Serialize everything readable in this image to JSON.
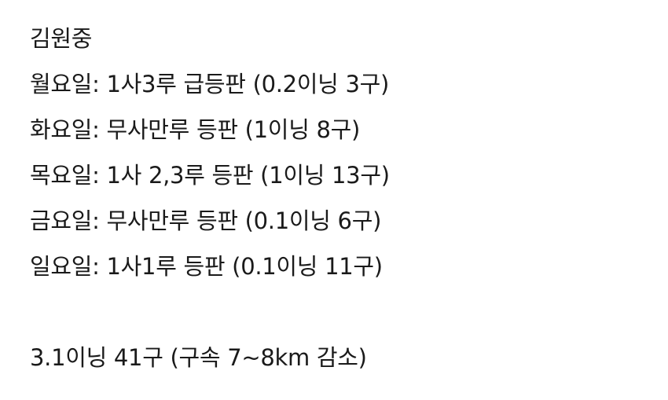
{
  "note": {
    "title": "김원중",
    "lines": [
      "월요일: 1사3루 급등판 (0.2이닝 3구)",
      "화요일: 무사만루 등판 (1이닝 8구)",
      "목요일: 1사 2,3루 등판 (1이닝 13구)",
      "금요일: 무사만루 등판 (0.1이닝 6구)",
      "일요일: 1사1루 등판 (0.1이닝 11구)"
    ],
    "summary": "3.1이닝 41구 (구속 7~8km 감소)"
  }
}
